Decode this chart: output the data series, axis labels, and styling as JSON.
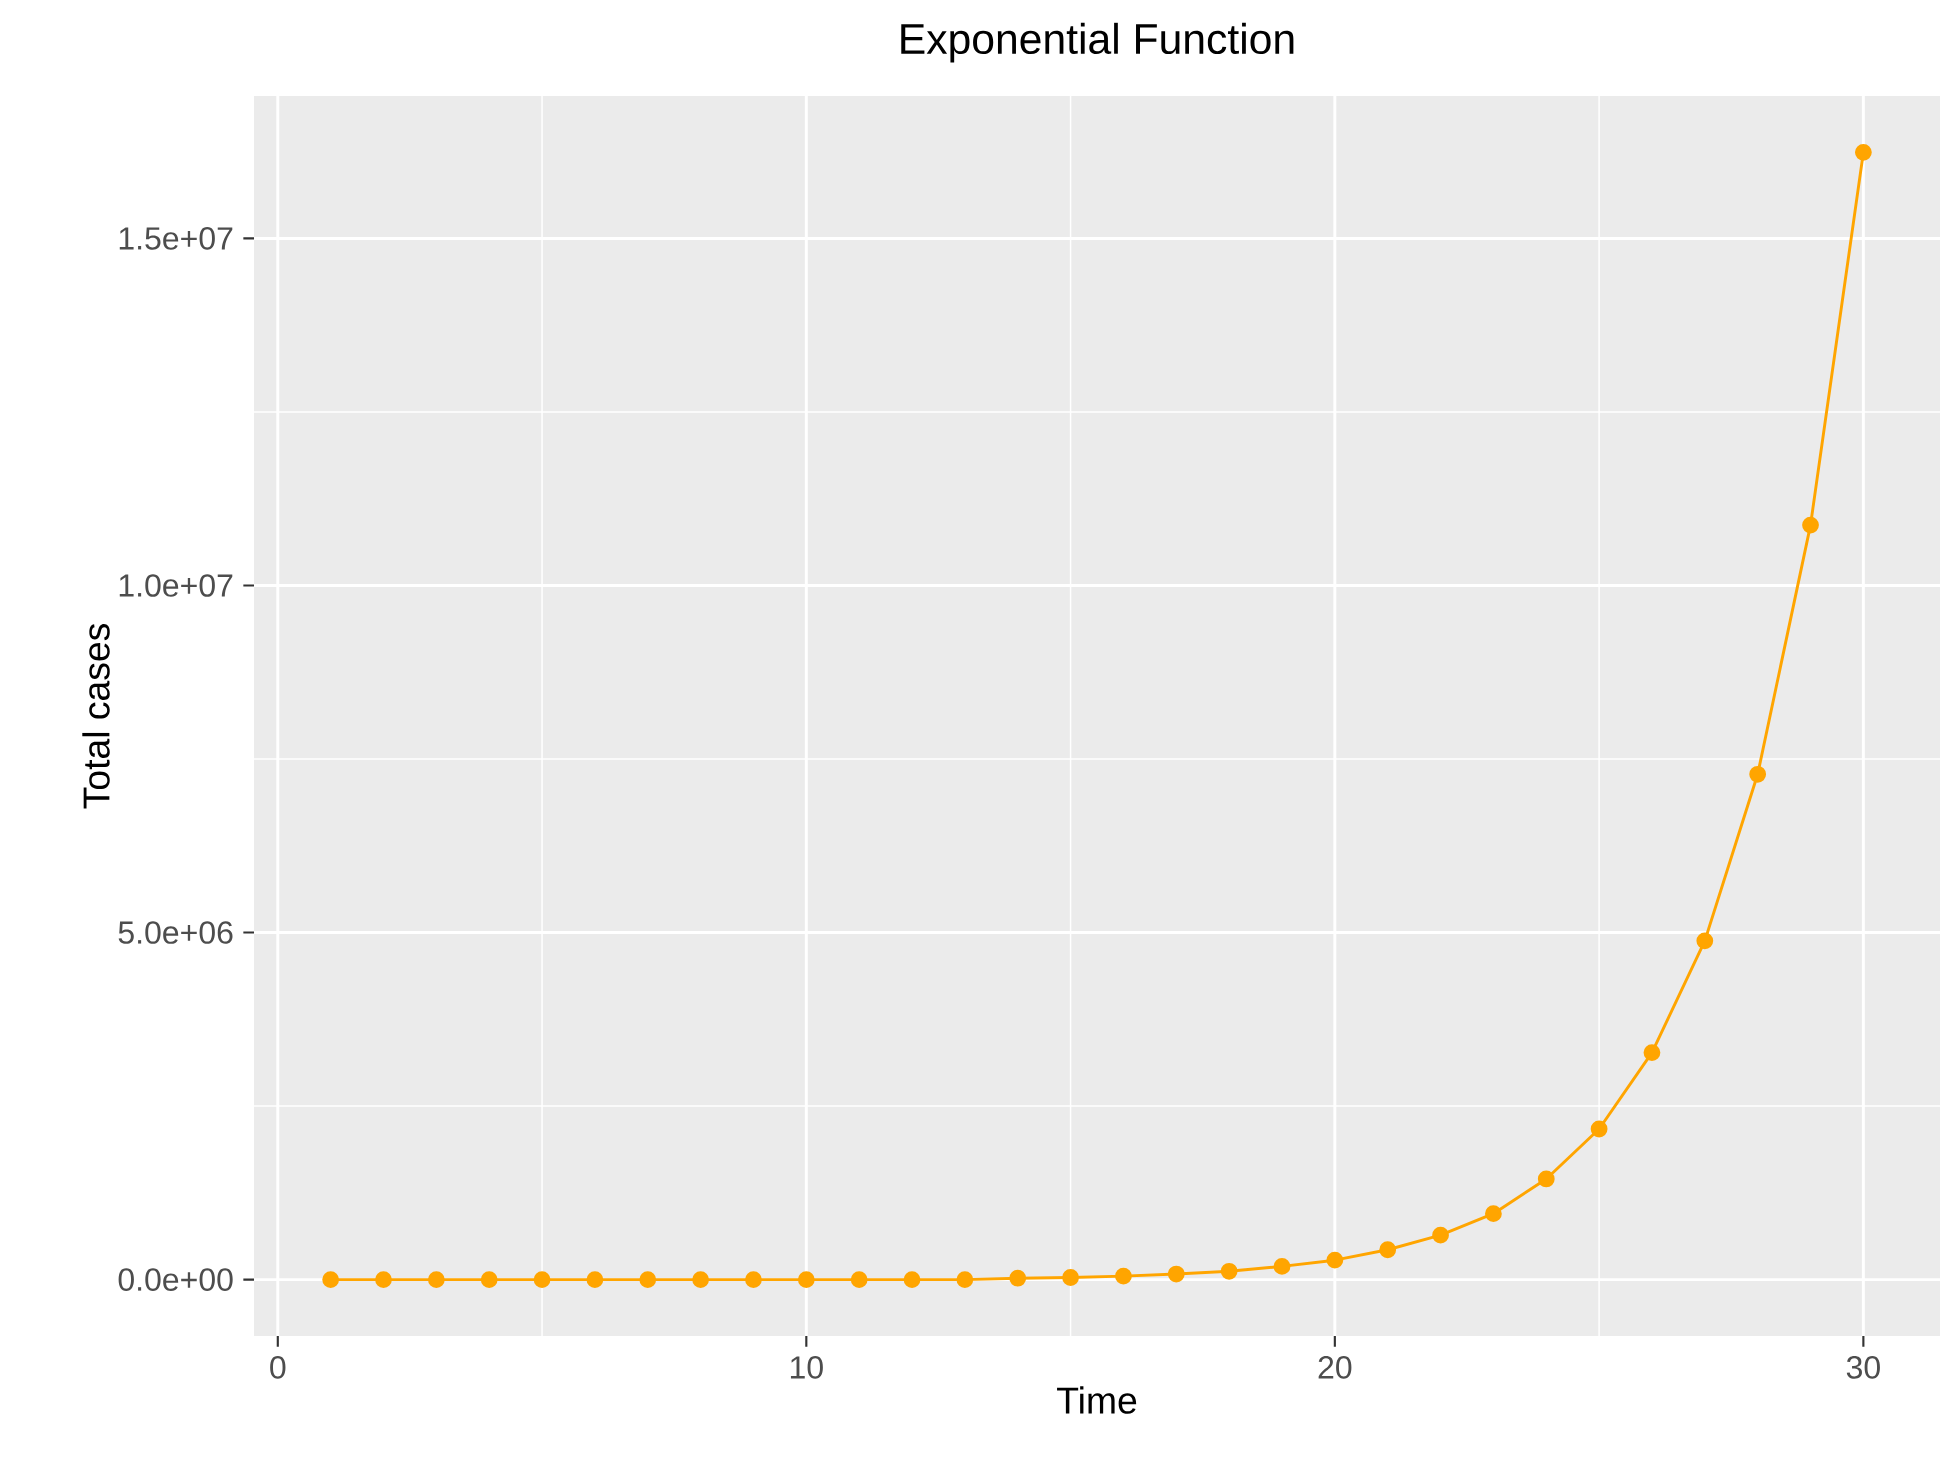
{
  "chart_data": {
    "type": "line",
    "title": "Exponential Function",
    "xlabel": "Time",
    "ylabel": "Total cases",
    "x": [
      1,
      2,
      3,
      4,
      5,
      6,
      7,
      8,
      9,
      10,
      11,
      12,
      13,
      14,
      15,
      16,
      17,
      18,
      19,
      20,
      21,
      22,
      23,
      24,
      25,
      26,
      27,
      28,
      29,
      30
    ],
    "series": [
      {
        "color": "#ffa500",
        "values": [
          0,
          0,
          0,
          0,
          0,
          0,
          0,
          0,
          0,
          0,
          0,
          0,
          0,
          20000,
          30000,
          50000,
          80000,
          120000,
          190000,
          280000,
          430000,
          640000,
          950000,
          1450000,
          2170000,
          3270000,
          4880000,
          7280000,
          10870000,
          16240000
        ]
      }
    ],
    "xlim": [
      -0.45,
      31.45
    ],
    "ylim": [
      -812000,
      17052000
    ],
    "xticks": [
      0,
      10,
      20,
      30
    ],
    "yticks": [
      {
        "value": 0,
        "label": "0.0e+00"
      },
      {
        "value": 5000000,
        "label": "5.0e+06"
      },
      {
        "value": 10000000,
        "label": "1.0e+07"
      },
      {
        "value": 15000000,
        "label": "1.5e+07"
      }
    ],
    "grid": true,
    "marker": "circle",
    "line_style": "solid"
  }
}
